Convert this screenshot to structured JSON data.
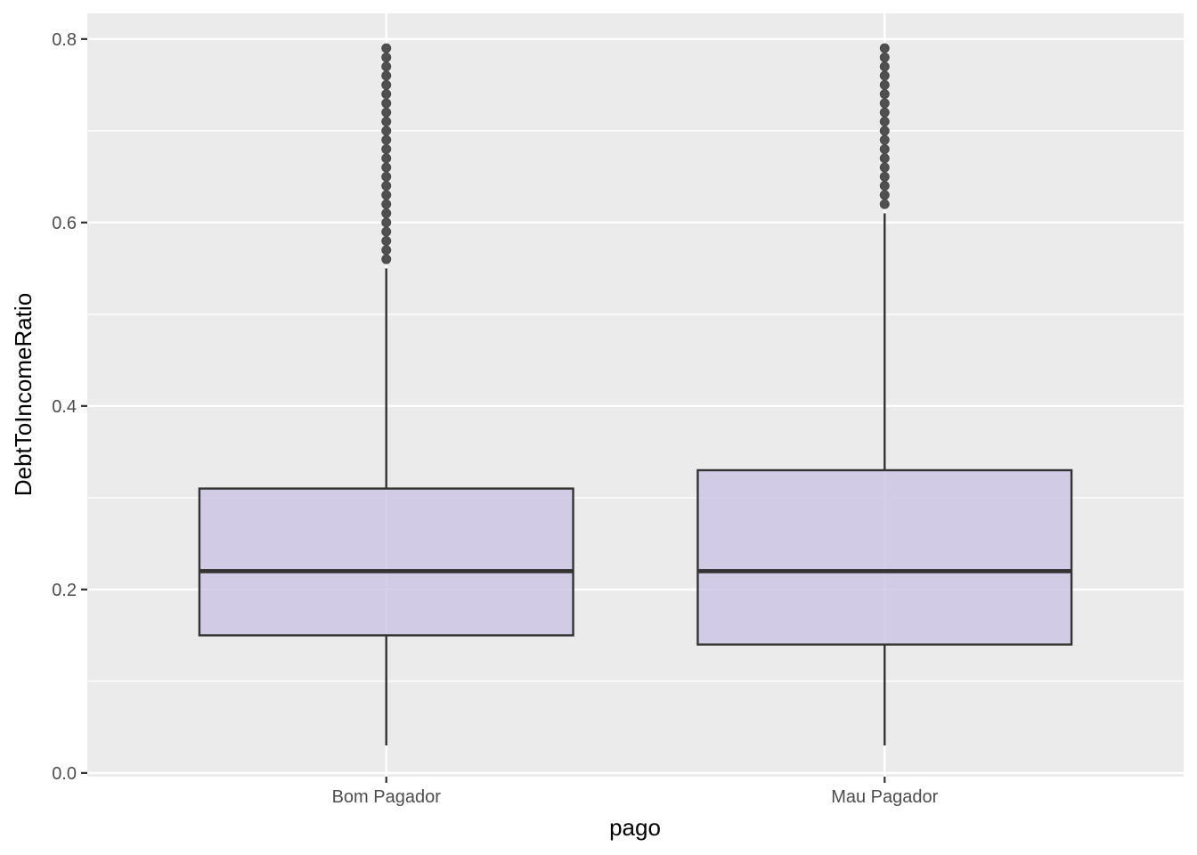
{
  "chart_data": {
    "type": "box",
    "xlabel": "pago",
    "ylabel": "DebtToIncomeRatio",
    "ylim": [
      -0.004,
      0.828
    ],
    "yticks": [
      0.0,
      0.2,
      0.4,
      0.6,
      0.8
    ],
    "ytick_labels": [
      "0.0",
      "0.2",
      "0.4",
      "0.6",
      "0.8"
    ],
    "grid": true,
    "categories": [
      "Bom Pagador",
      "Mau Pagador"
    ],
    "boxes": [
      {
        "category": "Bom Pagador",
        "whisker_low": 0.03,
        "q1": 0.15,
        "median": 0.22,
        "q3": 0.31,
        "whisker_high": 0.55,
        "outliers": [
          0.56,
          0.57,
          0.58,
          0.59,
          0.6,
          0.61,
          0.62,
          0.63,
          0.64,
          0.65,
          0.66,
          0.67,
          0.68,
          0.69,
          0.7,
          0.71,
          0.72,
          0.73,
          0.74,
          0.75,
          0.76,
          0.77,
          0.78,
          0.79
        ]
      },
      {
        "category": "Mau Pagador",
        "whisker_low": 0.03,
        "q1": 0.14,
        "median": 0.22,
        "q3": 0.33,
        "whisker_high": 0.61,
        "outliers": [
          0.62,
          0.63,
          0.64,
          0.65,
          0.66,
          0.67,
          0.68,
          0.69,
          0.7,
          0.71,
          0.72,
          0.73,
          0.74,
          0.75,
          0.76,
          0.77,
          0.78,
          0.79
        ]
      }
    ],
    "colors": {
      "panel_background": "#ebebeb",
      "grid_major": "#ffffff",
      "box_fill": "#cbc3e3",
      "box_stroke": "#333333",
      "outlier": "#333333"
    }
  }
}
